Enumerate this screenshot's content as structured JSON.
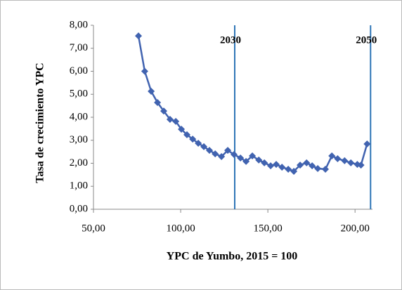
{
  "chart_data": {
    "type": "line",
    "x_label": "YPC de Yumbo, 2015 = 100",
    "y_label": "Tasa de crecimiento YPC",
    "series": [
      {
        "name": "Tasa de crecimiento YPC",
        "color": "#4163b0",
        "x": [
          75.8,
          79.4,
          83.1,
          86.7,
          90.3,
          93.9,
          97.2,
          100.4,
          103.6,
          106.9,
          110.1,
          113.3,
          116.5,
          119.8,
          123.4,
          127.0,
          130.6,
          134.3,
          137.5,
          141.1,
          144.8,
          148.0,
          151.6,
          154.8,
          158.1,
          161.7,
          164.9,
          168.5,
          172.2,
          175.4,
          178.6,
          183.0,
          186.7,
          190.0,
          194.0,
          197.6,
          201.3,
          203.4,
          206.9
        ],
        "values": [
          7.54,
          6.0,
          5.13,
          4.64,
          4.27,
          3.91,
          3.82,
          3.48,
          3.24,
          3.05,
          2.87,
          2.72,
          2.56,
          2.41,
          2.29,
          2.56,
          2.38,
          2.23,
          2.08,
          2.32,
          2.14,
          2.02,
          1.89,
          1.95,
          1.83,
          1.74,
          1.65,
          1.92,
          2.02,
          1.89,
          1.77,
          1.74,
          2.32,
          2.2,
          2.11,
          2.02,
          1.95,
          1.92,
          2.84
        ]
      }
    ],
    "xlim": [
      50,
      210
    ],
    "ylim": [
      0,
      8
    ],
    "xticks": [
      {
        "value": 50,
        "label": "50,00"
      },
      {
        "value": 100,
        "label": "100,00"
      },
      {
        "value": 150,
        "label": "150,00"
      },
      {
        "value": 200,
        "label": "200,00"
      }
    ],
    "yticks": [
      {
        "value": 0,
        "label": "0,00"
      },
      {
        "value": 1,
        "label": "1,00"
      },
      {
        "value": 2,
        "label": "2,00"
      },
      {
        "value": 3,
        "label": "3,00"
      },
      {
        "value": 4,
        "label": "4,00"
      },
      {
        "value": 5,
        "label": "5,00"
      },
      {
        "value": 6,
        "label": "6,00"
      },
      {
        "value": 7,
        "label": "7,00"
      },
      {
        "value": 8,
        "label": "8,00"
      }
    ],
    "grid": false,
    "vlines": [
      {
        "x": 131,
        "label": "2030",
        "color": "#2e75b6"
      },
      {
        "x": 208.9,
        "label": "2050",
        "color": "#2e75b6"
      }
    ]
  }
}
